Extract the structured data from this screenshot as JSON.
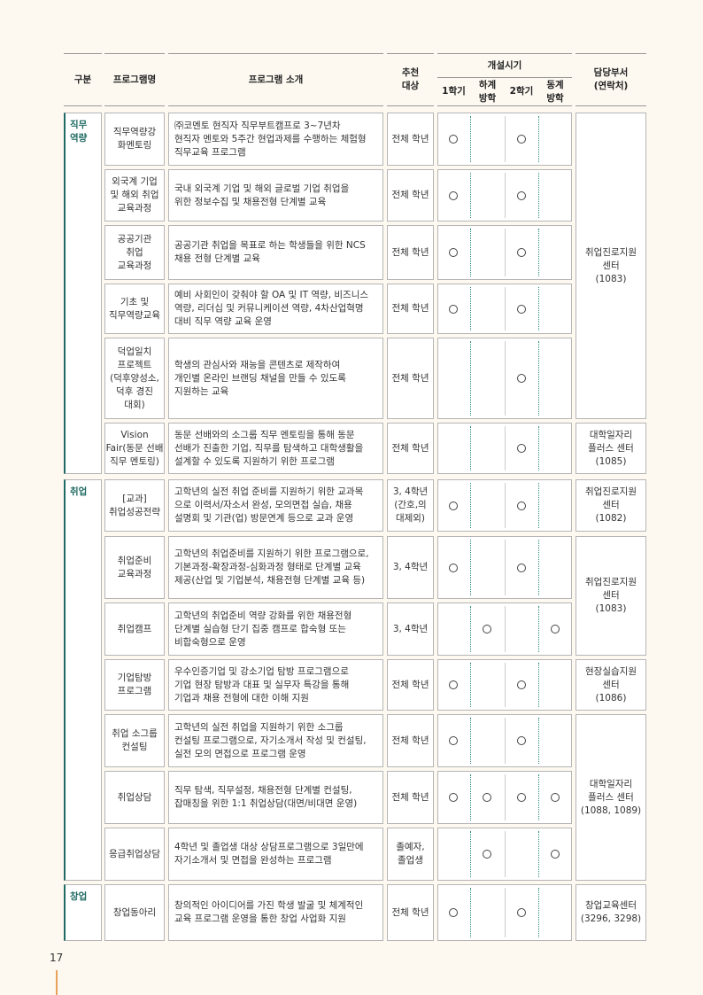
{
  "header": {
    "category": "구분",
    "name": "프로그램명",
    "intro": "프로그램 소개",
    "target": "추천\n대상",
    "period": "개설시기",
    "terms": [
      "1학기",
      "하계\n방학",
      "2학기",
      "동계\n방학"
    ],
    "dept": "담당부서\n(연락처)"
  },
  "categories": [
    "직무\n역량",
    "취업",
    "창업"
  ],
  "depts": [
    "취업진로지원\n센터\n(1083)",
    "대학일자리\n플러스 센터\n(1085)",
    "취업진로지원\n센터\n(1082)",
    "취업진로지원\n센터\n(1083)",
    "현장실습지원\n센터\n(1086)",
    "대학일자리\n플러스 센터\n(1088, 1089)",
    "창업교육센터\n(3296, 3298)"
  ],
  "rows": [
    {
      "name": "직무역량강\n화멘토링",
      "intro": "㈜코멘토 현직자 직무부트캠프로 3~7년차\n현직자 멘토와 5주간 현업과제를 수행하는 체험형\n직무교육 프로그램",
      "target": "전체 학년",
      "schedule": [
        true,
        false,
        true,
        false
      ]
    },
    {
      "name": "외국계 기업\n및 해외 취업\n교육과정",
      "intro": "국내 외국계 기업 및 해외 글로벌 기업 취업을\n위한 정보수집 및 채용전형 단계별 교육",
      "target": "전체 학년",
      "schedule": [
        true,
        false,
        true,
        false
      ]
    },
    {
      "name": "공공기관\n취업\n교육과정",
      "intro": "공공기관 취업을 목표로 하는 학생들을 위한 NCS\n채용 전형 단계별 교육",
      "target": "전체 학년",
      "schedule": [
        true,
        false,
        true,
        false
      ]
    },
    {
      "name": "기초 및\n직무역량교육",
      "intro": "예비 사회인이 갖춰야 할 OA 및 IT 역량, 비즈니스\n역량, 리더십 및 커뮤니케이션 역량, 4차산업혁명\n대비 직무 역량 교육 운영",
      "target": "전체 학년",
      "schedule": [
        true,
        false,
        true,
        false
      ]
    },
    {
      "name": "덕업일치\n프로젝트\n(덕후양성소,\n덕후 경진\n대회)",
      "intro": "학생의 관심사와 재능을 콘텐츠로 제작하여\n개인별 온라인 브랜딩 채널을 만들 수 있도록\n지원하는 교육",
      "target": "전체 학년",
      "schedule": [
        false,
        false,
        true,
        false
      ]
    },
    {
      "name": "Vision\nFair(동문 선배\n직무 멘토링)",
      "intro": "동문 선배와의 소그룹 직무 멘토링을 통해 동문\n선배가 진출한 기업, 직무를 탐색하고 대학생활을\n설계할 수 있도록 지원하기 위한 프로그램",
      "target": "전체 학년",
      "schedule": [
        false,
        false,
        true,
        false
      ]
    },
    {
      "name": "[교과]\n취업성공전략",
      "intro": "고학년의 실전 취업 준비를 지원하기 위한 교과목\n으로 이력서/자소서 완성, 모의면접 실습, 채용\n설명회 및 기관(업) 방문연계 등으로 교과 운영",
      "target": "3, 4학년\n(간호,의\n대제외)",
      "schedule": [
        true,
        false,
        true,
        false
      ]
    },
    {
      "name": "취업준비\n교육과정",
      "intro": "고학년의 취업준비를 지원하기 위한 프로그램으로,\n기본과정-확장과정-심화과정 형태로 단계별 교육\n제공(산업 및 기업분석, 채용전형 단계별 교육 등)",
      "target": "3, 4학년",
      "schedule": [
        true,
        false,
        true,
        false
      ]
    },
    {
      "name": "취업캠프",
      "intro": "고학년의 취업준비 역량 강화를 위한 채용전형\n단계별 실습형 단기 집중 캠프로 합숙형 또는\n비합숙형으로 운영",
      "target": "3, 4학년",
      "schedule": [
        false,
        true,
        false,
        true
      ]
    },
    {
      "name": "기업탐방\n프로그램",
      "intro": "우수인증기업 및 강소기업 탐방 프로그램으로\n기업 현장 탐방과 대표 및 실무자 특강을 통해\n기업과 채용 전형에 대한 이해 지원",
      "target": "전체 학년",
      "schedule": [
        true,
        false,
        true,
        false
      ]
    },
    {
      "name": "취업 소그룹\n컨설팅",
      "intro": "고학년의 실전 취업을 지원하기 위한 소그룹\n컨설팅 프로그램으로, 자기소개서 작성 및 컨설팅,\n실전 모의 면접으로 프로그램 운영",
      "target": "전체 학년",
      "schedule": [
        true,
        false,
        true,
        false
      ]
    },
    {
      "name": "취업상담",
      "intro": "직무 탐색, 직무설정, 채용전형 단계별 컨설팅,\n잡매칭을 위한 1:1 취업상담(대면/비대면 운영)",
      "target": "전체 학년",
      "schedule": [
        true,
        true,
        true,
        true
      ]
    },
    {
      "name": "응급취업상담",
      "intro": "4학년 및 졸업생 대상 상담프로그램으로 3일만에\n자기소개서 및 면접을 완성하는 프로그램",
      "target": "졸예자,\n졸업생",
      "schedule": [
        false,
        true,
        false,
        true
      ]
    },
    {
      "name": "창업동아리",
      "intro": "창의적인 아이디어를 가진 학생 발굴 및 체계적인\n교육 프로그램 운영을 통한 창업 사업화 지원",
      "target": "전체 학년",
      "schedule": [
        true,
        false,
        true,
        false
      ]
    }
  ],
  "page_number": "17"
}
